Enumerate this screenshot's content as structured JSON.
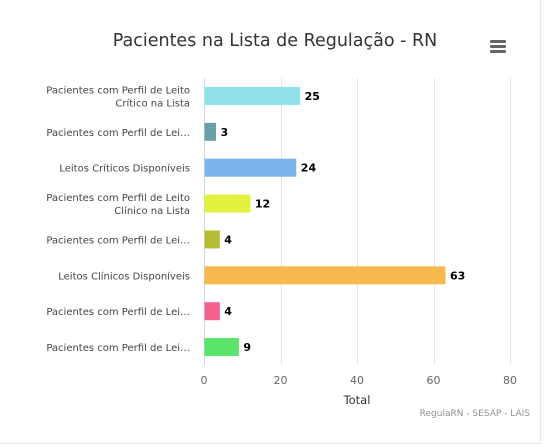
{
  "chart_data": {
    "type": "bar",
    "orientation": "horizontal",
    "title": "Pacientes na Lista de Regulação - RN",
    "xlabel": "Total",
    "ylabel": "",
    "xlim": [
      0,
      80
    ],
    "ticks": [
      0,
      20,
      40,
      60,
      80
    ],
    "grid": true,
    "legend": "none",
    "categories": [
      [
        "Pacientes com Perfil de Leito",
        "Crítico na Lista"
      ],
      [
        "Pacientes com Perfil de Lei…"
      ],
      [
        "Leitos Críticos Disponíveis"
      ],
      [
        "Pacientes com Perfil de Leito",
        "Clínico na Lista"
      ],
      [
        "Pacientes com Perfil de Lei…"
      ],
      [
        "Leitos Clínicos Disponíveis"
      ],
      [
        "Pacientes com Perfil de Lei…"
      ],
      [
        "Pacientes com Perfil de Lei…"
      ]
    ],
    "values": [
      25,
      3,
      24,
      12,
      4,
      63,
      4,
      9
    ],
    "colors": [
      "#91e1ec",
      "#6a9fa8",
      "#7cb3ec",
      "#e4f03e",
      "#b5bd37",
      "#f7b94e",
      "#f5618a",
      "#5ae46b"
    ]
  },
  "credits": "RegulaRN - SESAP - LAIS",
  "menu": {
    "icon": "hamburger-menu-icon"
  }
}
